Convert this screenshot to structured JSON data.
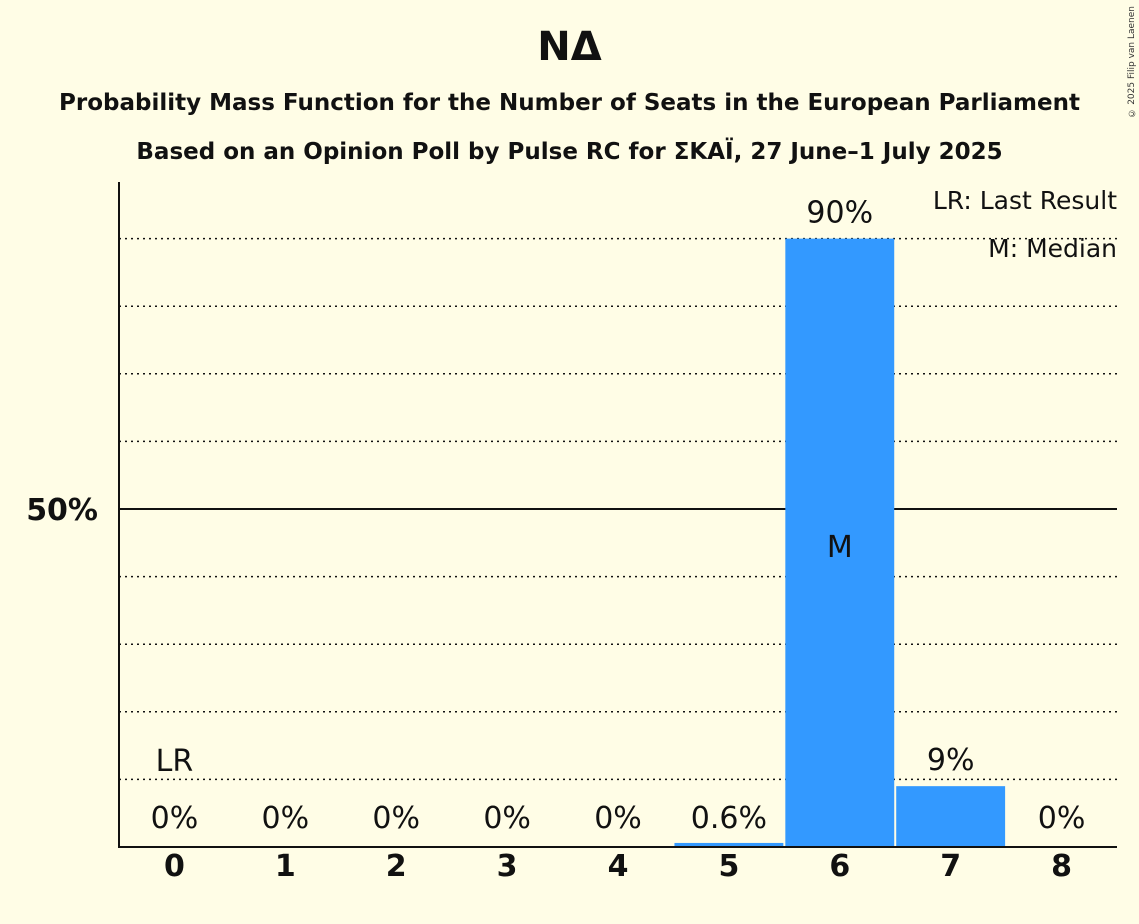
{
  "chart_data": {
    "type": "bar",
    "title": "ΝΔ",
    "subtitle": "Probability Mass Function for the Number of Seats in the European Parliament",
    "subtitle2": "Based on an Opinion Poll by Pulse RC for ΣΚΑΪ, 27 June–1 July 2025",
    "categories": [
      "0",
      "1",
      "2",
      "3",
      "4",
      "5",
      "6",
      "7",
      "8"
    ],
    "values": [
      0,
      0,
      0,
      0,
      0,
      0.6,
      90,
      9,
      0
    ],
    "value_labels": [
      "0%",
      "0%",
      "0%",
      "0%",
      "0%",
      "0.6%",
      "90%",
      "9%",
      "0%"
    ],
    "ylim": [
      0,
      100
    ],
    "ytick_label": "50%",
    "ytick_value": 50,
    "gridlines": [
      10,
      20,
      30,
      40,
      60,
      70,
      80,
      90
    ],
    "last_result_index": 0,
    "last_result_label": "LR",
    "median_index": 6,
    "median_label": "M",
    "legend": [
      "LR: Last Result",
      "M: Median"
    ],
    "bar_color": "#3399ff",
    "copyright": "© 2025 Filip van Laenen"
  }
}
